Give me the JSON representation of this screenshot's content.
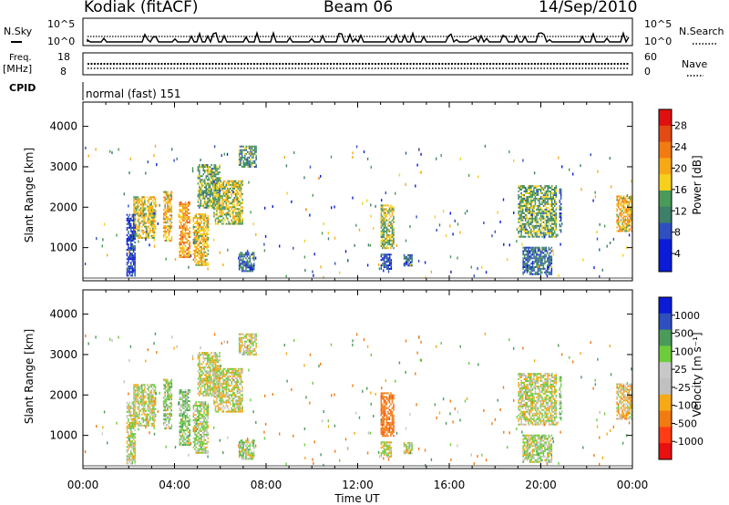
{
  "header": {
    "station": "Kodiak (fitACF)",
    "beam": "Beam 06",
    "date": "14/Sep/2010"
  },
  "top_strip": {
    "nsky_label": "N.Sky",
    "nsearch_label": "N.Search",
    "left_ticks": [
      "10^5",
      "10^0"
    ],
    "right_ticks": [
      "10^5",
      "10^0"
    ],
    "freq_label_1": "Freq.",
    "freq_label_2": "[MHz]",
    "freq_ticks": [
      "18",
      "8"
    ],
    "nave_label": "Nave",
    "nave_ticks": [
      "60",
      "0"
    ],
    "cpid_label": "CPID",
    "cpid_value": "normal (fast) 151"
  },
  "colors": {
    "power": [
      "#0a1cd8",
      "#0a1cd8",
      "#2f4fbf",
      "#3d7f69",
      "#4a9a5a",
      "#f6d01a",
      "#f6a915",
      "#f27a12",
      "#e24a14",
      "#e01010"
    ],
    "velocity": [
      "#e81010",
      "#ff3c14",
      "#f27a12",
      "#f6a915",
      "#c0c0c0",
      "#c8c8c8",
      "#6dcc3c",
      "#4a9a5a",
      "#2f4fbf",
      "#0a1cd8"
    ]
  },
  "chart_data": [
    {
      "type": "heatmap",
      "title": "Power",
      "x_labels": [
        "00:00",
        "04:00",
        "08:00",
        "12:00",
        "16:00",
        "20:00",
        "00:00"
      ],
      "y_ticks": [
        "1000",
        "2000",
        "3000",
        "4000"
      ],
      "ylabel": "Slant Range [km]",
      "colorbar_label": "Power [dB]",
      "colorbar_ticks": [
        "28",
        "24",
        "20",
        "16",
        "12",
        "8",
        "4"
      ],
      "xlim_hours": [
        0,
        24
      ],
      "ylim_km": [
        180,
        4600
      ],
      "regions": [
        {
          "t": [
            2.2,
            3.2
          ],
          "r": [
            1150,
            2200
          ],
          "v": 18
        },
        {
          "t": [
            3.5,
            3.9
          ],
          "r": [
            1100,
            2350
          ],
          "v": 20
        },
        {
          "t": [
            4.2,
            4.7
          ],
          "r": [
            700,
            2100
          ],
          "v": 22
        },
        {
          "t": [
            4.8,
            5.5
          ],
          "r": [
            500,
            1800
          ],
          "v": 19
        },
        {
          "t": [
            5.0,
            6.0
          ],
          "r": [
            1900,
            3000
          ],
          "v": 14
        },
        {
          "t": [
            5.7,
            7.0
          ],
          "r": [
            1500,
            2600
          ],
          "v": 17
        },
        {
          "t": [
            6.8,
            7.6
          ],
          "r": [
            2800,
            3350
          ],
          "v": 13
        },
        {
          "t": [
            6.8,
            7.5
          ],
          "r": [
            200,
            700
          ],
          "v": 10
        },
        {
          "t": [
            13.0,
            13.5
          ],
          "r": [
            200,
            600
          ],
          "v": 7
        },
        {
          "t": [
            13.0,
            13.6
          ],
          "r": [
            900,
            2000
          ],
          "v": 16
        },
        {
          "t": [
            14.0,
            14.4
          ],
          "r": [
            200,
            500
          ],
          "v": 9
        },
        {
          "t": [
            19.0,
            20.7
          ],
          "r": [
            1200,
            2500
          ],
          "v": 14
        },
        {
          "t": [
            19.2,
            20.5
          ],
          "r": [
            200,
            900
          ],
          "v": 10
        },
        {
          "t": [
            20.8,
            20.9
          ],
          "r": [
            1300,
            2400
          ],
          "v": 9
        },
        {
          "t": [
            23.3,
            24.0
          ],
          "r": [
            1300,
            2200
          ],
          "v": 20
        },
        {
          "t": [
            1.9,
            2.3
          ],
          "r": [
            250,
            1800
          ],
          "v": 6
        }
      ]
    },
    {
      "type": "heatmap",
      "title": "Velocity",
      "x_labels": [
        "00:00",
        "04:00",
        "08:00",
        "12:00",
        "16:00",
        "20:00",
        "00:00"
      ],
      "xlabel": "Time UT",
      "y_ticks": [
        "1000",
        "2000",
        "3000",
        "4000"
      ],
      "ylabel": "Slant Range [km]",
      "colorbar_label": "Velocity [m s⁻¹]",
      "colorbar_ticks": [
        "1000",
        "500",
        "100",
        "25",
        "-25",
        "-100",
        "-500",
        "-1000"
      ],
      "xlim_hours": [
        0,
        24
      ],
      "ylim_km": [
        180,
        4600
      ],
      "regions": [
        {
          "t": [
            2.2,
            3.2
          ],
          "r": [
            1150,
            2200
          ],
          "v": 0
        },
        {
          "t": [
            3.5,
            3.9
          ],
          "r": [
            1100,
            2350
          ],
          "v": 60
        },
        {
          "t": [
            4.2,
            4.7
          ],
          "r": [
            700,
            2100
          ],
          "v": 80
        },
        {
          "t": [
            4.8,
            5.5
          ],
          "r": [
            500,
            1800
          ],
          "v": 40
        },
        {
          "t": [
            5.0,
            6.0
          ],
          "r": [
            1900,
            3000
          ],
          "v": 0
        },
        {
          "t": [
            5.7,
            7.0
          ],
          "r": [
            1500,
            2600
          ],
          "v": 0
        },
        {
          "t": [
            6.8,
            7.6
          ],
          "r": [
            2800,
            3350
          ],
          "v": 0
        },
        {
          "t": [
            6.8,
            7.5
          ],
          "r": [
            200,
            700
          ],
          "v": 60
        },
        {
          "t": [
            13.0,
            13.5
          ],
          "r": [
            200,
            600
          ],
          "v": 0
        },
        {
          "t": [
            13.0,
            13.6
          ],
          "r": [
            900,
            2000
          ],
          "v": -300
        },
        {
          "t": [
            14.0,
            14.4
          ],
          "r": [
            200,
            500
          ],
          "v": 0
        },
        {
          "t": [
            19.0,
            20.7
          ],
          "r": [
            1200,
            2500
          ],
          "v": 0
        },
        {
          "t": [
            19.2,
            20.5
          ],
          "r": [
            200,
            900
          ],
          "v": 40
        },
        {
          "t": [
            20.8,
            20.9
          ],
          "r": [
            1300,
            2400
          ],
          "v": 120
        },
        {
          "t": [
            23.3,
            24.0
          ],
          "r": [
            1300,
            2200
          ],
          "v": -60
        },
        {
          "t": [
            1.9,
            2.3
          ],
          "r": [
            250,
            1800
          ],
          "v": 0
        }
      ]
    }
  ]
}
